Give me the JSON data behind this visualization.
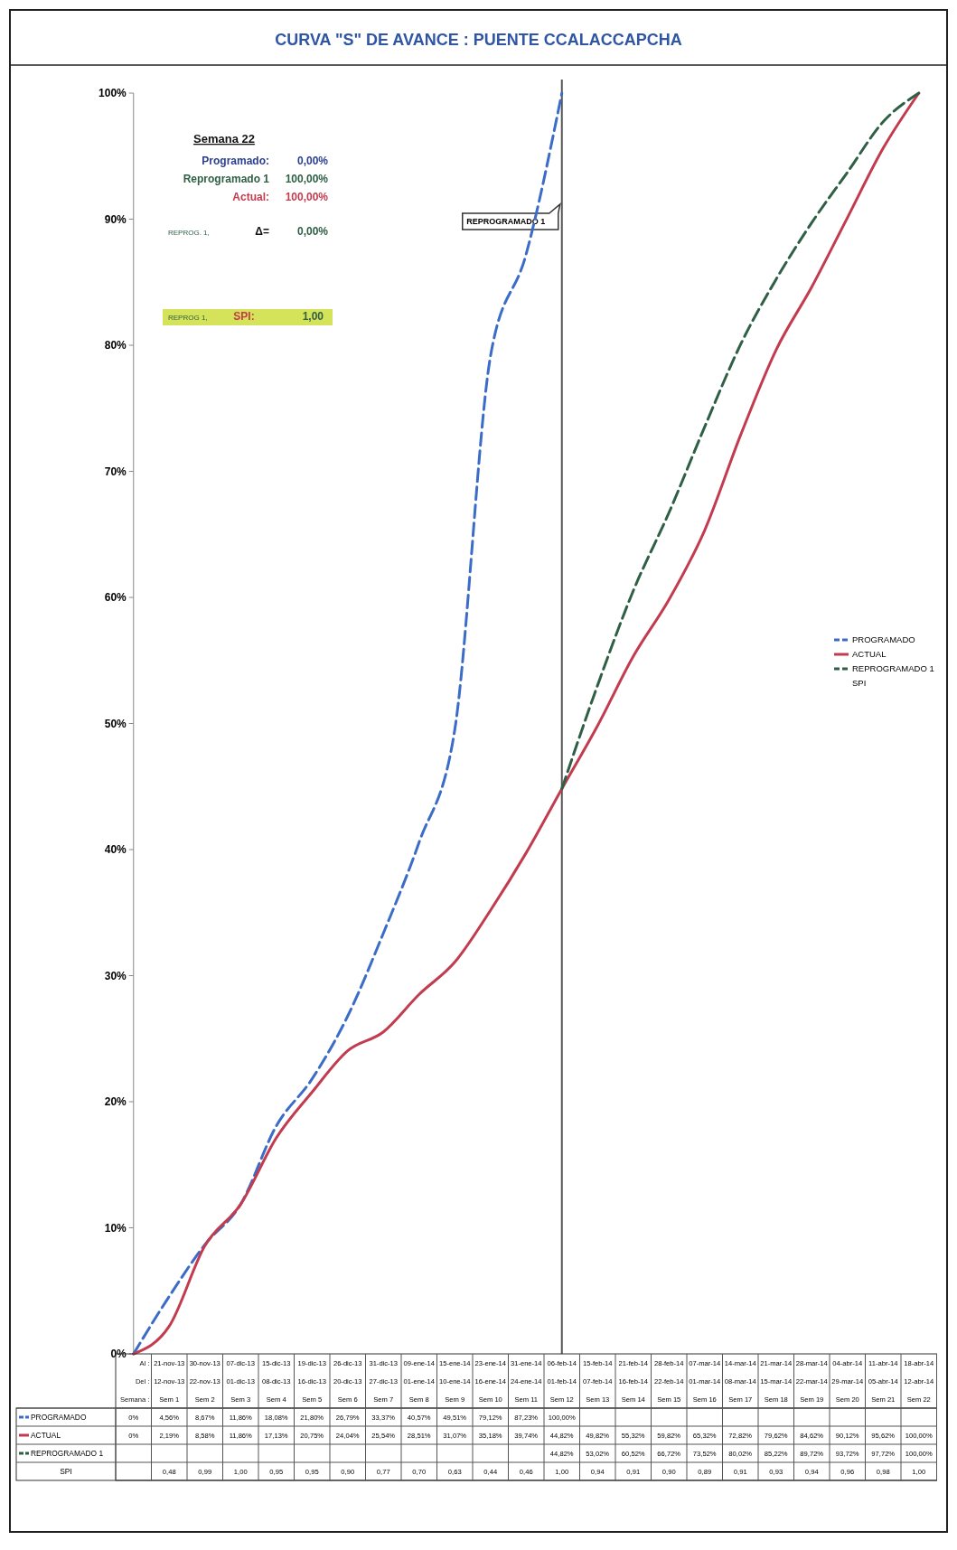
{
  "chart_data": {
    "type": "line",
    "title": "CURVA \"S\" DE AVANCE : PUENTE CCALACCAPCHA",
    "categories": [
      null,
      "21-nov-13\n12-nov-13\nSem 1",
      "30-nov-13\n22-nov-13\nSem 2",
      "07-dic-13\n01-dic-13\nSem 3",
      "15-dic-13\n08-dic-13\nSem 4",
      "19-dic-13\n16-dic-13\nSem 5",
      "26-dic-13\n20-dic-13\nSem 6",
      "31-dic-13\n27-dic-13\nSem 7",
      "09-ene-14\n01-ene-14\nSem 8",
      "15-ene-14\n10-ene-14\nSem 9",
      "23-ene-14\n16-ene-14\nSem 10",
      "31-ene-14\n24-ene-14\nSem 11",
      "06-feb-14\n01-feb-14\nSem 12",
      "15-feb-14\n07-feb-14\nSem 13",
      "21-feb-14\n16-feb-14\nSem 14",
      "28-feb-14\n22-feb-14\nSem 15",
      "07-mar-14\n01-mar-14\nSem 16",
      "14-mar-14\n08-mar-14\nSem 17",
      "21-mar-14\n15-mar-14\nSem 18",
      "28-mar-14\n22-mar-14\nSem 19",
      "04-abr-14\n29-mar-14\nSem 20",
      "11-abr-14\n05-abr-14\nSem 21",
      "18-abr-14\n12-abr-14\nSem 22"
    ],
    "series": [
      {
        "name": "PROGRAMADO",
        "color": "#3b6cc8",
        "line_style": "dashed",
        "values": [
          0,
          4.56,
          8.67,
          11.86,
          18.08,
          21.8,
          26.79,
          33.37,
          40.57,
          49.51,
          79.12,
          87.23,
          100,
          null,
          null,
          null,
          null,
          null,
          null,
          null,
          null,
          null,
          null
        ],
        "value_labels": [
          "0%",
          "4,56%",
          "8,67%",
          "11,86%",
          "18,08%",
          "21,80%",
          "26,79%",
          "33,37%",
          "40,57%",
          "49,51%",
          "79,12%",
          "87,23%",
          "100,00%",
          null,
          null,
          null,
          null,
          null,
          null,
          null,
          null,
          null,
          null
        ]
      },
      {
        "name": "ACTUAL",
        "color": "#c23b4e",
        "line_style": "solid",
        "values": [
          0,
          2.19,
          8.58,
          11.86,
          17.13,
          20.75,
          24.04,
          25.54,
          28.51,
          31.07,
          35.18,
          39.74,
          44.82,
          49.82,
          55.32,
          59.82,
          65.32,
          72.82,
          79.62,
          84.62,
          90.12,
          95.62,
          100
        ],
        "value_labels": [
          "0%",
          "2,19%",
          "8,58%",
          "11,86%",
          "17,13%",
          "20,75%",
          "24,04%",
          "25,54%",
          "28,51%",
          "31,07%",
          "35,18%",
          "39,74%",
          "44,82%",
          "49,82%",
          "55,32%",
          "59,82%",
          "65,32%",
          "72,82%",
          "79,62%",
          "84,62%",
          "90,12%",
          "95,62%",
          "100,00%"
        ]
      },
      {
        "name": "REPROGRAMADO 1",
        "color": "#2f5f45",
        "line_style": "dashed",
        "values": [
          null,
          null,
          null,
          null,
          null,
          null,
          null,
          null,
          null,
          null,
          null,
          null,
          44.82,
          53.02,
          60.52,
          66.72,
          73.52,
          80.02,
          85.22,
          89.72,
          93.72,
          97.72,
          100
        ],
        "value_labels": [
          null,
          null,
          null,
          null,
          null,
          null,
          null,
          null,
          null,
          null,
          null,
          null,
          "44,82%",
          "53,02%",
          "60,52%",
          "66,72%",
          "73,52%",
          "80,02%",
          "85,22%",
          "89,72%",
          "93,72%",
          "97,72%",
          "100,00%"
        ]
      },
      {
        "name": "SPI",
        "values": [
          null,
          null,
          null,
          null,
          null,
          null,
          null,
          null,
          null,
          null,
          null,
          null,
          null,
          null,
          null,
          null,
          null,
          null,
          null,
          null,
          null,
          null,
          null
        ],
        "value_labels": [
          null,
          "0,48",
          "0,99",
          "1,00",
          "0,95",
          "0,95",
          "0,90",
          "0,77",
          "0,70",
          "0,63",
          "0,44",
          "0,46",
          "1,00",
          "0,94",
          "0,91",
          "0,90",
          "0,89",
          "0,91",
          "0,93",
          "0,94",
          "0,96",
          "0,98",
          "1,00"
        ]
      }
    ],
    "ylim": [
      0,
      100
    ],
    "yticks": [
      {
        "value": 0,
        "label": "0%"
      },
      {
        "value": 10,
        "label": "10%"
      },
      {
        "value": 20,
        "label": "20%"
      },
      {
        "value": 30,
        "label": "30%"
      },
      {
        "value": 40,
        "label": "40%"
      },
      {
        "value": 50,
        "label": "50%"
      },
      {
        "value": 60,
        "label": "60%"
      },
      {
        "value": 70,
        "label": "70%"
      },
      {
        "value": 80,
        "label": "80%"
      },
      {
        "value": 90,
        "label": "90%"
      },
      {
        "value": 100,
        "label": "100%"
      }
    ],
    "ref_lines": [
      {
        "axis": "x",
        "value": "06-feb-14\n01-feb-14\nSem 12",
        "label": "REPROGRAMADO 1",
        "color": "#555555"
      }
    ],
    "annotations": [
      "Semana 22",
      "Programado:",
      "0,00%",
      "Reprogramado 1",
      "100,00%",
      "Actual:",
      "100,00%",
      "REPROG. 1,",
      "Δ=",
      "0,00%",
      "REPROG 1,",
      "SPI:",
      "1,00",
      "Al :",
      "Del :",
      "Semana :"
    ],
    "legend": "bottom left",
    "grid": false
  }
}
